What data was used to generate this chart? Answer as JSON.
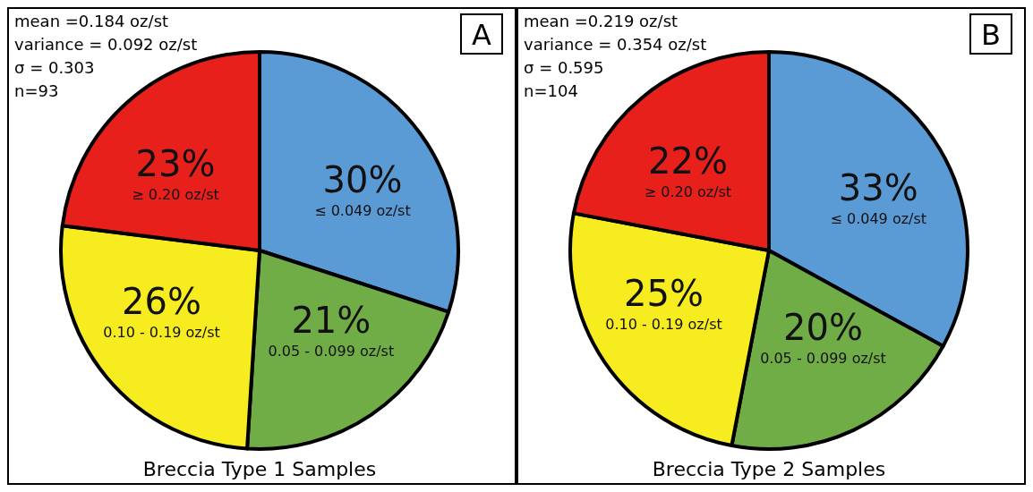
{
  "chart_data": [
    {
      "type": "pie",
      "title": "Breccia Type 1 Samples",
      "categories": [
        "≤ 0.049 oz/st",
        "0.05 - 0.099 oz/st",
        "0.10 - 0.19 oz/st",
        "≥ 0.20 oz/st"
      ],
      "values": [
        30,
        21,
        26,
        23
      ],
      "value_labels": [
        "30%",
        "21%",
        "26%",
        "23%"
      ],
      "colors": [
        "#5b9bd5",
        "#70ad47",
        "#f7ec1f",
        "#e8201c"
      ],
      "annotations": [
        "mean =0.184 oz/st",
        "variance = 0.092 oz/st",
        "σ = 0.303",
        "n=93",
        "A"
      ]
    },
    {
      "type": "pie",
      "title": "Breccia Type 2 Samples",
      "categories": [
        "≤ 0.049 oz/st",
        "0.05 - 0.099 oz/st",
        "0.10 - 0.19 oz/st",
        "≥ 0.20 oz/st"
      ],
      "values": [
        33,
        20,
        25,
        22
      ],
      "value_labels": [
        "33%",
        "20%",
        "25%",
        "22%"
      ],
      "colors": [
        "#5b9bd5",
        "#70ad47",
        "#f7ec1f",
        "#e8201c"
      ],
      "annotations": [
        "mean =0.219 oz/st",
        "variance = 0.354 oz/st",
        "σ = 0.595",
        "n=104",
        "B"
      ]
    }
  ]
}
